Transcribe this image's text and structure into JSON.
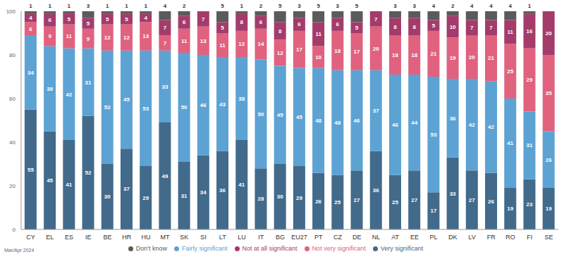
{
  "chart_data": {
    "type": "bar",
    "stacked": true,
    "data_labels": true,
    "grid": false,
    "legend": "bottom",
    "note": "Mar/Apr 2024",
    "categories": [
      "CY",
      "EL",
      "ES",
      "IE",
      "BE",
      "HR",
      "HU",
      "MT",
      "SK",
      "SI",
      "LT",
      "LU",
      "IT",
      "BG",
      "EU27",
      "PT",
      "CZ",
      "DE",
      "NL",
      "AT",
      "EE",
      "PL",
      "DK",
      "LV",
      "FR",
      "RO",
      "FI",
      "SE"
    ],
    "ylim": [
      0,
      100
    ],
    "yticks": [
      0,
      20,
      40,
      60,
      80,
      100
    ],
    "series": [
      {
        "name": "Very significant",
        "color": "#426a8b",
        "values": [
          55,
          45,
          41,
          52,
          30,
          37,
          29,
          49,
          31,
          34,
          36,
          41,
          28,
          30,
          29,
          26,
          25,
          27,
          36,
          25,
          27,
          17,
          33,
          27,
          26,
          19,
          23,
          19
        ]
      },
      {
        "name": "Fairly significant",
        "color": "#5ca3d4",
        "values": [
          34,
          39,
          42,
          31,
          52,
          45,
          53,
          33,
          50,
          46,
          43,
          38,
          50,
          45,
          45,
          48,
          48,
          46,
          37,
          46,
          44,
          53,
          36,
          42,
          42,
          41,
          31,
          26
        ]
      },
      {
        "name": "Not very significant",
        "color": "#e0627f",
        "values": [
          6,
          9,
          11,
          9,
          12,
          12,
          13,
          7,
          11,
          13,
          11,
          12,
          14,
          12,
          17,
          10,
          18,
          17,
          20,
          18,
          18,
          21,
          19,
          20,
          21,
          25,
          29,
          35
        ]
      },
      {
        "name": "Not at all significant",
        "color": "#a43c6b",
        "values": [
          4,
          6,
          5,
          5,
          5,
          5,
          4,
          7,
          6,
          7,
          5,
          8,
          6,
          8,
          6,
          11,
          6,
          5,
          7,
          8,
          8,
          5,
          10,
          7,
          7,
          11,
          16,
          20
        ]
      },
      {
        "name": "Don't know",
        "color": "#5b5b5b",
        "values": [
          1,
          1,
          1,
          3,
          1,
          1,
          1,
          4,
          2,
          null,
          5,
          1,
          2,
          5,
          3,
          5,
          3,
          5,
          null,
          3,
          3,
          4,
          2,
          4,
          4,
          4,
          1,
          null
        ]
      }
    ]
  }
}
